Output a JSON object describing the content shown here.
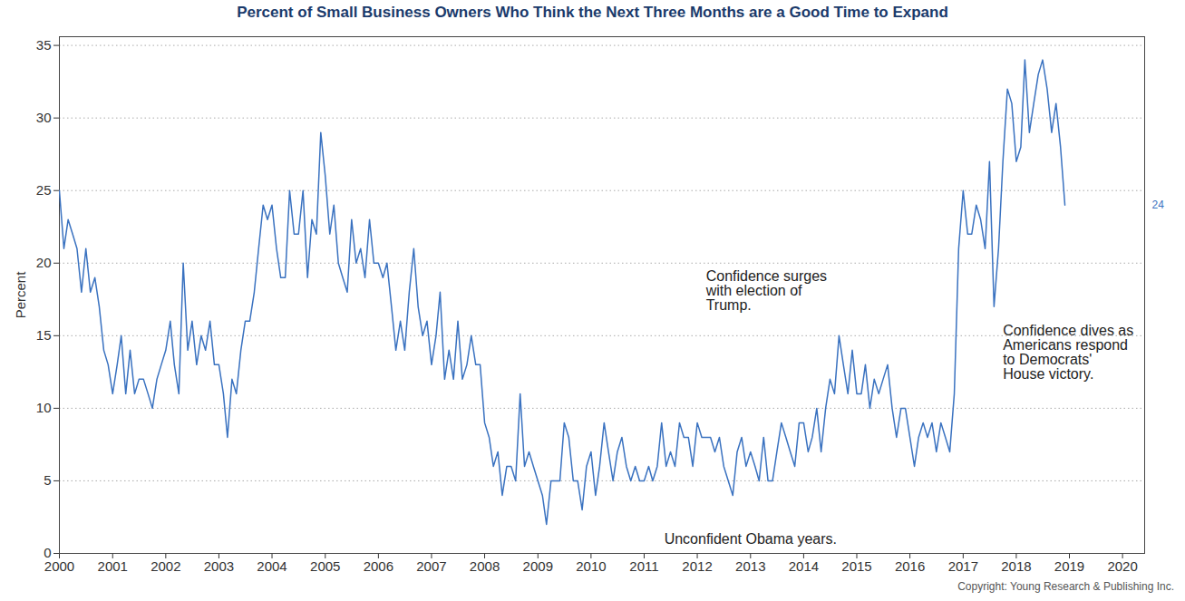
{
  "chart_data": {
    "type": "line",
    "title": "Percent of Small Business Owners Who Think the Next Three Months are a Good Time to Expand",
    "y_label": "Percent",
    "source": "Copyright: Young Research & Publishing Inc.",
    "color": "#3a72c0",
    "grid": true,
    "xlim": [
      "2000-01",
      "2020-06"
    ],
    "xticks": [
      "2000",
      "2001",
      "2002",
      "2003",
      "2004",
      "2005",
      "2006",
      "2007",
      "2008",
      "2009",
      "2010",
      "2011",
      "2012",
      "2013",
      "2014",
      "2015",
      "2016",
      "2017",
      "2018",
      "2019",
      "2020"
    ],
    "ylim": [
      0,
      35.6
    ],
    "yticks": [
      0,
      5,
      10,
      15,
      20,
      25,
      30,
      35
    ],
    "x": [
      "2000-01",
      "2000-02",
      "2000-03",
      "2000-04",
      "2000-05",
      "2000-06",
      "2000-07",
      "2000-08",
      "2000-09",
      "2000-10",
      "2000-11",
      "2000-12",
      "2001-01",
      "2001-02",
      "2001-03",
      "2001-04",
      "2001-05",
      "2001-06",
      "2001-07",
      "2001-08",
      "2001-09",
      "2001-10",
      "2001-11",
      "2001-12",
      "2002-01",
      "2002-02",
      "2002-03",
      "2002-04",
      "2002-05",
      "2002-06",
      "2002-07",
      "2002-08",
      "2002-09",
      "2002-10",
      "2002-11",
      "2002-12",
      "2003-01",
      "2003-02",
      "2003-03",
      "2003-04",
      "2003-05",
      "2003-06",
      "2003-07",
      "2003-08",
      "2003-09",
      "2003-10",
      "2003-11",
      "2003-12",
      "2004-01",
      "2004-02",
      "2004-03",
      "2004-04",
      "2004-05",
      "2004-06",
      "2004-07",
      "2004-08",
      "2004-09",
      "2004-10",
      "2004-11",
      "2004-12",
      "2005-01",
      "2005-02",
      "2005-03",
      "2005-04",
      "2005-05",
      "2005-06",
      "2005-07",
      "2005-08",
      "2005-09",
      "2005-10",
      "2005-11",
      "2005-12",
      "2006-01",
      "2006-02",
      "2006-03",
      "2006-04",
      "2006-05",
      "2006-06",
      "2006-07",
      "2006-08",
      "2006-09",
      "2006-10",
      "2006-11",
      "2006-12",
      "2007-01",
      "2007-02",
      "2007-03",
      "2007-04",
      "2007-05",
      "2007-06",
      "2007-07",
      "2007-08",
      "2007-09",
      "2007-10",
      "2007-11",
      "2007-12",
      "2008-01",
      "2008-02",
      "2008-03",
      "2008-04",
      "2008-05",
      "2008-06",
      "2008-07",
      "2008-08",
      "2008-09",
      "2008-10",
      "2008-11",
      "2008-12",
      "2009-01",
      "2009-02",
      "2009-03",
      "2009-04",
      "2009-05",
      "2009-06",
      "2009-07",
      "2009-08",
      "2009-09",
      "2009-10",
      "2009-11",
      "2009-12",
      "2010-01",
      "2010-02",
      "2010-03",
      "2010-04",
      "2010-05",
      "2010-06",
      "2010-07",
      "2010-08",
      "2010-09",
      "2010-10",
      "2010-11",
      "2010-12",
      "2011-01",
      "2011-02",
      "2011-03",
      "2011-04",
      "2011-05",
      "2011-06",
      "2011-07",
      "2011-08",
      "2011-09",
      "2011-10",
      "2011-11",
      "2011-12",
      "2012-01",
      "2012-02",
      "2012-03",
      "2012-04",
      "2012-05",
      "2012-06",
      "2012-07",
      "2012-08",
      "2012-09",
      "2012-10",
      "2012-11",
      "2012-12",
      "2013-01",
      "2013-02",
      "2013-03",
      "2013-04",
      "2013-05",
      "2013-06",
      "2013-07",
      "2013-08",
      "2013-09",
      "2013-10",
      "2013-11",
      "2013-12",
      "2014-01",
      "2014-02",
      "2014-03",
      "2014-04",
      "2014-05",
      "2014-06",
      "2014-07",
      "2014-08",
      "2014-09",
      "2014-10",
      "2014-11",
      "2014-12",
      "2015-01",
      "2015-02",
      "2015-03",
      "2015-04",
      "2015-05",
      "2015-06",
      "2015-07",
      "2015-08",
      "2015-09",
      "2015-10",
      "2015-11",
      "2015-12",
      "2016-01",
      "2016-02",
      "2016-03",
      "2016-04",
      "2016-05",
      "2016-06",
      "2016-07",
      "2016-08",
      "2016-09",
      "2016-10",
      "2016-11",
      "2016-12",
      "2017-01",
      "2017-02",
      "2017-03",
      "2017-04",
      "2017-05",
      "2017-06",
      "2017-07",
      "2017-08",
      "2017-09",
      "2017-10",
      "2017-11",
      "2017-12",
      "2018-01",
      "2018-02",
      "2018-03",
      "2018-04",
      "2018-05",
      "2018-06",
      "2018-07",
      "2018-08",
      "2018-09",
      "2018-10",
      "2018-11",
      "2018-12"
    ],
    "values": [
      25,
      21,
      23,
      22,
      21,
      18,
      21,
      18,
      19,
      17,
      14,
      13,
      11,
      13,
      15,
      11,
      14,
      11,
      12,
      12,
      11,
      10,
      12,
      13,
      14,
      16,
      13,
      11,
      20,
      14,
      16,
      13,
      15,
      14,
      16,
      13,
      13,
      11,
      8,
      12,
      11,
      14,
      16,
      16,
      18,
      21,
      24,
      23,
      24,
      21,
      19,
      19,
      25,
      22,
      22,
      25,
      19,
      23,
      22,
      29,
      26,
      22,
      24,
      20,
      19,
      18,
      23,
      20,
      21,
      19,
      23,
      20,
      20,
      19,
      20,
      17,
      14,
      16,
      14,
      18,
      21,
      17,
      15,
      16,
      13,
      15,
      18,
      12,
      14,
      12,
      16,
      12,
      13,
      15,
      13,
      13,
      9,
      8,
      6,
      7,
      4,
      6,
      6,
      5,
      11,
      6,
      7,
      6,
      5,
      4,
      2,
      5,
      5,
      5,
      9,
      8,
      5,
      5,
      3,
      6,
      7,
      4,
      6,
      9,
      7,
      5,
      7,
      8,
      6,
      5,
      6,
      5,
      5,
      6,
      5,
      6,
      9,
      6,
      7,
      6,
      9,
      8,
      8,
      6,
      9,
      8,
      8,
      8,
      7,
      8,
      6,
      5,
      4,
      7,
      8,
      6,
      7,
      6,
      5,
      8,
      5,
      5,
      7,
      9,
      8,
      7,
      6,
      9,
      9,
      7,
      8,
      10,
      7,
      10,
      12,
      11,
      15,
      13,
      11,
      14,
      11,
      11,
      13,
      10,
      12,
      11,
      12,
      13,
      10,
      8,
      10,
      10,
      8,
      6,
      8,
      9,
      8,
      9,
      7,
      9,
      8,
      7,
      11,
      21,
      25,
      22,
      22,
      24,
      23,
      21,
      27,
      17,
      21,
      27,
      32,
      31,
      27,
      28,
      34,
      29,
      31,
      33,
      34,
      32,
      29,
      31,
      28,
      24
    ],
    "annotations": [
      {
        "text": "Unconfident Obama years.",
        "x": "2013-01",
        "y": 1
      },
      {
        "text": "Confidence surges with election of Trump.",
        "x": "2012-03",
        "y": 19.5
      },
      {
        "text": "Confidence dives as Americans respond to Democrats' House victory.",
        "x": "2017-10",
        "y": 15.75
      },
      {
        "text": "24",
        "x": "2020-06",
        "y": 24
      }
    ]
  }
}
